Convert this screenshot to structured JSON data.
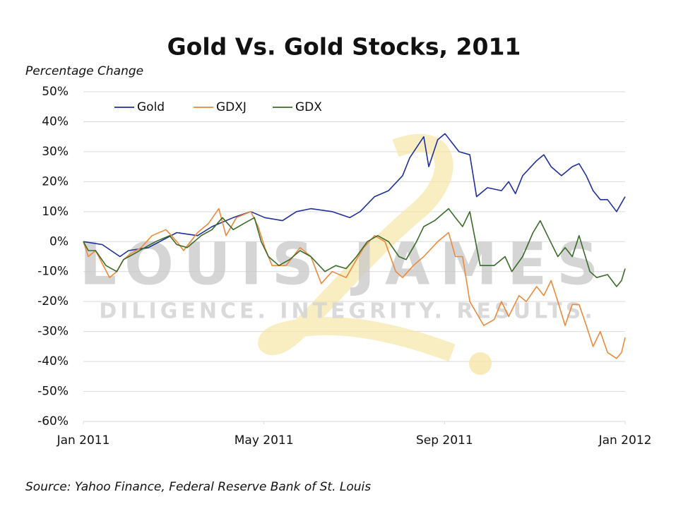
{
  "chart_data": {
    "type": "line",
    "title": "Gold Vs. Gold Stocks, 2011",
    "y_label": "Percentage Change",
    "source": "Source: Yahoo Finance, Federal Reserve Bank of St. Louis",
    "watermark": {
      "name": "LOUIS JAMES",
      "tagline": "DILIGENCE. INTEGRITY. RESULTS."
    },
    "xlim": [
      0,
      12
    ],
    "xticks": [
      {
        "value": 0,
        "label": "Jan 2011"
      },
      {
        "value": 4,
        "label": "May 2011"
      },
      {
        "value": 8,
        "label": "Sep 2011"
      },
      {
        "value": 12,
        "label": "Jan 2012"
      }
    ],
    "ylim": [
      -60,
      50
    ],
    "yticks": [
      {
        "value": 50,
        "label": "50%"
      },
      {
        "value": 40,
        "label": "40%"
      },
      {
        "value": 30,
        "label": "30%"
      },
      {
        "value": 20,
        "label": "20%"
      },
      {
        "value": 10,
        "label": "10%"
      },
      {
        "value": 0,
        "label": "0%"
      },
      {
        "value": -10,
        "label": "-10%"
      },
      {
        "value": -20,
        "label": "-20%"
      },
      {
        "value": -30,
        "label": "-30%"
      },
      {
        "value": -40,
        "label": "-40%"
      },
      {
        "value": -50,
        "label": "-50%"
      },
      {
        "value": -60,
        "label": "-60%"
      }
    ],
    "grid": true,
    "legend": "top-left",
    "series": [
      {
        "name": "Gold",
        "color": "#1f2f9b",
        "x": [
          0,
          0.42,
          0.81,
          1.0,
          1.44,
          2.07,
          2.53,
          2.85,
          3.32,
          3.71,
          4.02,
          4.41,
          4.72,
          5.04,
          5.51,
          5.9,
          6.13,
          6.45,
          6.76,
          7.07,
          7.23,
          7.54,
          7.65,
          7.85,
          8.01,
          8.32,
          8.56,
          8.71,
          8.95,
          9.26,
          9.42,
          9.57,
          9.73,
          10.04,
          10.2,
          10.36,
          10.59,
          10.83,
          10.98,
          11.14,
          11.29,
          11.45,
          11.61,
          11.81,
          12.0
        ],
        "values": [
          0,
          -1,
          -5,
          -3,
          -2,
          3,
          2,
          5,
          8,
          10,
          8,
          7,
          10,
          11,
          10,
          8,
          10,
          15,
          17,
          22,
          28,
          35,
          25,
          34,
          36,
          30,
          29,
          15,
          18,
          17,
          20,
          16,
          22,
          27,
          29,
          25,
          22,
          25,
          26,
          22,
          17,
          14,
          14,
          10,
          15
        ]
      },
      {
        "name": "GDXJ",
        "color": "#ec8a3c",
        "x": [
          0,
          0.11,
          0.27,
          0.58,
          0.74,
          0.89,
          1.05,
          1.28,
          1.52,
          1.83,
          2.07,
          2.22,
          2.53,
          2.77,
          3.0,
          3.16,
          3.39,
          3.71,
          3.87,
          4.02,
          4.18,
          4.49,
          4.8,
          5.04,
          5.27,
          5.51,
          5.82,
          6.05,
          6.21,
          6.45,
          6.68,
          6.92,
          7.07,
          7.31,
          7.54,
          7.85,
          8.09,
          8.24,
          8.4,
          8.56,
          8.87,
          9.1,
          9.26,
          9.42,
          9.65,
          9.81,
          10.04,
          10.2,
          10.36,
          10.51,
          10.67,
          10.83,
          10.98,
          11.14,
          11.29,
          11.45,
          11.61,
          11.81,
          11.92,
          12.0
        ],
        "values": [
          0,
          -5,
          -3,
          -12,
          -10,
          -6,
          -4,
          -2,
          2,
          4,
          0,
          -3,
          3,
          6,
          11,
          2,
          8,
          10,
          5,
          -2,
          -8,
          -8,
          -2,
          -5,
          -14,
          -10,
          -12,
          -6,
          -2,
          2,
          0,
          -10,
          -12,
          -8,
          -5,
          0,
          3,
          -5,
          -5,
          -20,
          -28,
          -26,
          -20,
          -25,
          -18,
          -20,
          -15,
          -18,
          -13,
          -20,
          -28,
          -21,
          -21,
          -28,
          -35,
          -30,
          -37,
          -39,
          -37,
          -32
        ]
      },
      {
        "name": "GDX",
        "color": "#3b6b2a",
        "x": [
          0,
          0.11,
          0.27,
          0.5,
          0.74,
          0.89,
          1.13,
          1.36,
          1.6,
          1.91,
          2.07,
          2.3,
          2.61,
          2.85,
          3.08,
          3.32,
          3.55,
          3.79,
          3.94,
          4.1,
          4.33,
          4.57,
          4.8,
          5.04,
          5.35,
          5.59,
          5.82,
          6.05,
          6.29,
          6.52,
          6.76,
          6.99,
          7.15,
          7.38,
          7.54,
          7.78,
          8.09,
          8.24,
          8.4,
          8.56,
          8.79,
          9.1,
          9.34,
          9.49,
          9.73,
          9.96,
          10.12,
          10.28,
          10.51,
          10.67,
          10.83,
          10.98,
          11.06,
          11.22,
          11.37,
          11.61,
          11.81,
          11.92,
          12.0
        ],
        "values": [
          0,
          -3,
          -3,
          -8,
          -10,
          -6,
          -4,
          -2,
          0,
          2,
          -1,
          -2,
          2,
          4,
          8,
          4,
          6,
          8,
          0,
          -5,
          -8,
          -6,
          -3,
          -5,
          -10,
          -8,
          -9,
          -5,
          0,
          2,
          0,
          -5,
          -6,
          0,
          5,
          7,
          11,
          8,
          5,
          10,
          -8,
          -8,
          -5,
          -10,
          -5,
          3,
          7,
          2,
          -5,
          -2,
          -5,
          2,
          -2,
          -10,
          -12,
          -11,
          -15,
          -13,
          -9
        ]
      }
    ]
  }
}
